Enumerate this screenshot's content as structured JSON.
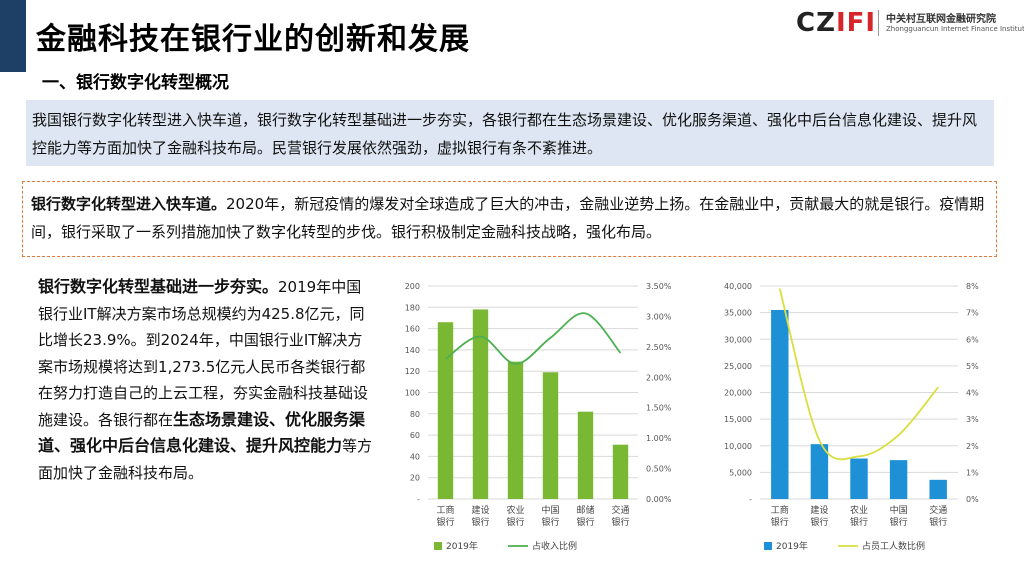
{
  "header": {
    "title": "金融科技在银行业的创新和发展",
    "section": "一、银行数字化转型概况"
  },
  "logo": {
    "mark_part1": "CZ",
    "mark_part2": "IFI",
    "cn_name": "中关村互联网金融研究院",
    "en_name": "Zhongguancun Internet Finance Institute"
  },
  "summary": {
    "text": "我国银行数字化转型进入快车道，银行数字化转型基础进一步夯实，各银行都在生态场景建设、优化服务渠道、强化中后台信息化建设、提升风控能力等方面加快了金融科技布局。民营银行发展依然强劲，虚拟银行有条不紊推进。"
  },
  "highlight": {
    "bold": "银行数字化转型进入快车道。",
    "text": "2020年，新冠疫情的爆发对全球造成了巨大的冲击，金融业逆势上扬。在金融业中，贡献最大的就是银行。疫情期间，银行采取了一系列措施加快了数字化转型的步伐。银行积极制定金融科技战略，强化布局。"
  },
  "paragraph": {
    "bold1": "银行数字化转型基础进一步夯实。",
    "text1": "2019年中国银行业IT解决方案市场总规模约为425.8亿元，同比增长23.9%。到2024年，中国银行业IT解决方案市场规模将达到1,273.5亿元人民币各类银行都在努力打造自己的上云工程，夯实金融科技基础设施建设。各银行都在",
    "bold2": "生态场景建设、优化服务渠道、强化中后台信息化建设、提升风控能力",
    "text2": "等方面加快了金融科技布局。"
  },
  "chart_data": [
    {
      "type": "bar",
      "categories": [
        "工商\n银行",
        "建设\n银行",
        "农业\n银行",
        "中国\n银行",
        "邮储\n银行",
        "交通\n银行"
      ],
      "series": [
        {
          "name": "2019年",
          "type": "bar",
          "axis": "left",
          "color": "#7ab833",
          "values": [
            166,
            178,
            129,
            119,
            82,
            51
          ]
        },
        {
          "name": "占收入比例",
          "type": "line",
          "axis": "right",
          "color": "#4caf50",
          "values": [
            2.3,
            2.67,
            2.22,
            2.65,
            3.05,
            2.4
          ]
        }
      ],
      "left_axis": {
        "min": 0,
        "max": 200,
        "step": 20,
        "ticks": [
          "-",
          "20",
          "40",
          "60",
          "80",
          "100",
          "120",
          "140",
          "160",
          "180",
          "200"
        ]
      },
      "right_axis": {
        "min": 0,
        "max": 3.5,
        "step": 0.5,
        "ticks": [
          "0.00%",
          "0.50%",
          "1.00%",
          "1.50%",
          "2.00%",
          "2.50%",
          "3.00%",
          "3.50%"
        ]
      },
      "grid": true,
      "legend": "bottom"
    },
    {
      "type": "bar",
      "categories": [
        "工商\n银行",
        "建设\n银行",
        "农业\n银行",
        "中国\n银行",
        "交通\n银行"
      ],
      "series": [
        {
          "name": "2019年",
          "type": "bar",
          "axis": "left",
          "color": "#1e90d6",
          "values": [
            35500,
            10300,
            7600,
            7300,
            3600
          ]
        },
        {
          "name": "占员工人数比例",
          "type": "line",
          "axis": "right",
          "color": "#d9df3c",
          "values": [
            7.9,
            2.2,
            1.6,
            2.4,
            4.2
          ]
        }
      ],
      "left_axis": {
        "min": 0,
        "max": 40000,
        "step": 5000,
        "ticks": [
          "-",
          "5,000",
          "10,000",
          "15,000",
          "20,000",
          "25,000",
          "30,000",
          "35,000",
          "40,000"
        ]
      },
      "right_axis": {
        "min": 0,
        "max": 8,
        "step": 1,
        "ticks": [
          "0%",
          "1%",
          "2%",
          "3%",
          "4%",
          "5%",
          "6%",
          "7%",
          "8%"
        ]
      },
      "grid": true,
      "legend": "bottom"
    }
  ]
}
